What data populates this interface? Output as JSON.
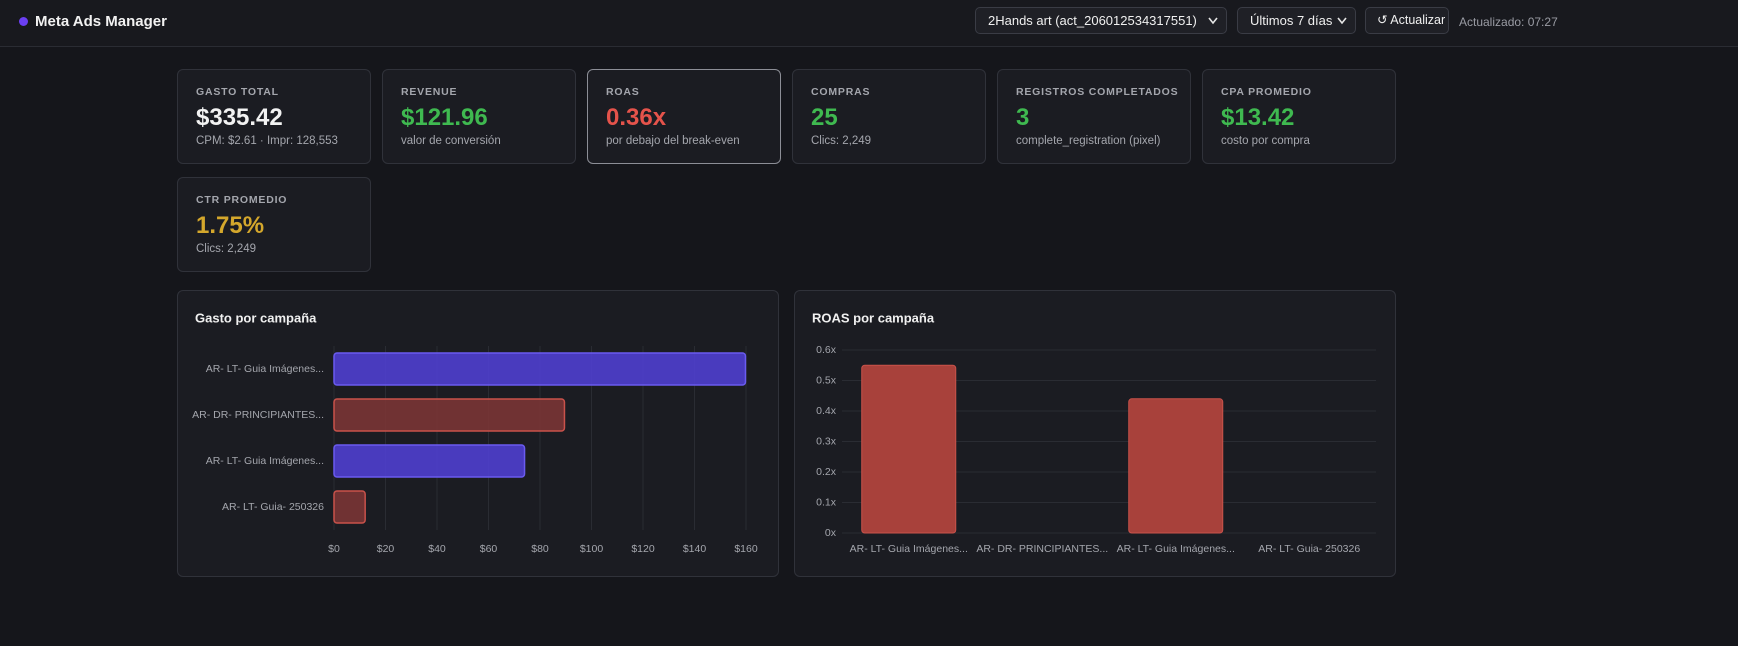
{
  "header": {
    "title": "Meta Ads Manager",
    "account": "2Hands art (act_206012534317551)",
    "period": "Últimos 7 días",
    "refresh": "↺ Actualizar",
    "updated": "Actualizado: 07:27"
  },
  "kpis": [
    {
      "label": "GASTO TOTAL",
      "value": "$335.42",
      "sub": "CPM: $2.61 · Impr: 128,553",
      "color": "#f2f2f2"
    },
    {
      "label": "REVENUE",
      "value": "$121.96",
      "sub": "valor de conversión",
      "color": "#3fb950"
    },
    {
      "label": "ROAS",
      "value": "0.36x",
      "sub": "por debajo del break-even",
      "color": "#e5534b"
    },
    {
      "label": "COMPRAS",
      "value": "25",
      "sub": "Clics: 2,249",
      "color": "#3fb950"
    },
    {
      "label": "REGISTROS COMPLETADOS",
      "value": "3",
      "sub": "complete_registration (pixel)",
      "color": "#3fb950"
    },
    {
      "label": "CPA PROMEDIO",
      "value": "$13.42",
      "sub": "costo por compra",
      "color": "#3fb950"
    },
    {
      "label": "CTR PROMEDIO",
      "value": "1.75%",
      "sub": "Clics: 2,249",
      "color": "#d4a72c"
    }
  ],
  "chart_data": [
    {
      "type": "barh",
      "title": "Gasto por campaña",
      "categories": [
        "AR- LT- Guia Imágenes...",
        "AR- DR- PRINCIPIANTES...",
        "AR- LT- Guia Imágenes...",
        "AR- LT- Guia- 250326"
      ],
      "values": [
        159.8,
        89.5,
        74.0,
        12.1
      ],
      "colors": [
        "#4f3fcf",
        "#7a3535",
        "#4f3fcf",
        "#7a3535"
      ],
      "xlim": [
        0,
        160
      ],
      "xticks": [
        {
          "value": 0,
          "label": "$0"
        },
        {
          "value": 20,
          "label": "$20"
        },
        {
          "value": 40,
          "label": "$40"
        },
        {
          "value": 60,
          "label": "$60"
        },
        {
          "value": 80,
          "label": "$80"
        },
        {
          "value": 100,
          "label": "$100"
        },
        {
          "value": 120,
          "label": "$120"
        },
        {
          "value": 140,
          "label": "$140"
        },
        {
          "value": 160,
          "label": "$160"
        }
      ],
      "grid": true
    },
    {
      "type": "bar",
      "title": "ROAS por campaña",
      "categories": [
        "AR- LT- Guia Imágenes...",
        "AR- DR- PRINCIPIANTES...",
        "AR- LT- Guia Imágenes...",
        "AR- LT- Guia- 250326"
      ],
      "values": [
        0.55,
        0,
        0.44,
        0
      ],
      "colors": [
        "#a8413b",
        "#a8413b",
        "#a8413b",
        "#a8413b"
      ],
      "ylim": [
        0,
        0.6
      ],
      "yticks": [
        {
          "value": 0,
          "label": "0x"
        },
        {
          "value": 0.1,
          "label": "0.1x"
        },
        {
          "value": 0.2,
          "label": "0.2x"
        },
        {
          "value": 0.3,
          "label": "0.3x"
        },
        {
          "value": 0.4,
          "label": "0.4x"
        },
        {
          "value": 0.5,
          "label": "0.5x"
        },
        {
          "value": 0.6,
          "label": "0.6x"
        }
      ],
      "grid": true
    }
  ]
}
